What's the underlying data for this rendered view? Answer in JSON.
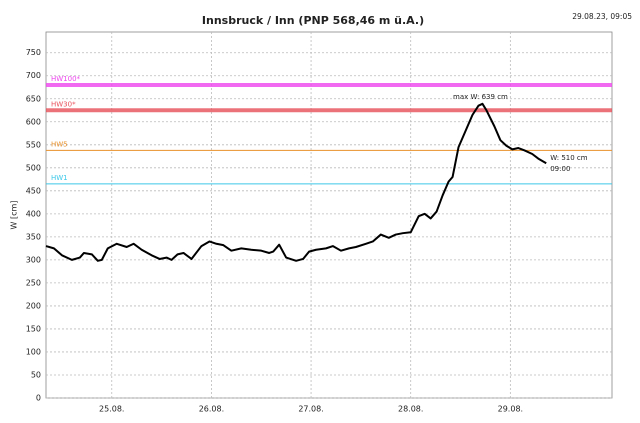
{
  "chart_data": {
    "type": "line",
    "title": "Innsbruck / Inn (PNP 568,46 m ü.A.)",
    "timestamp": "29.08.23, 09:05",
    "ylabel": "W [cm]",
    "xlim": [
      24.34,
      30.02
    ],
    "xticks": [
      {
        "value": 25,
        "label": "25.08."
      },
      {
        "value": 26,
        "label": "26.08."
      },
      {
        "value": 27,
        "label": "27.08."
      },
      {
        "value": 28,
        "label": "28.08."
      },
      {
        "value": 29,
        "label": "29.08."
      }
    ],
    "ylim": [
      0,
      795
    ],
    "yticks": [
      0,
      50,
      100,
      150,
      200,
      250,
      300,
      350,
      400,
      450,
      500,
      550,
      600,
      650,
      700,
      750
    ],
    "grid": true,
    "thresholds": [
      {
        "name": "HW100*",
        "value": 680,
        "color": "#ee44ee"
      },
      {
        "name": "HW30*",
        "value": 625,
        "color": "#e8505a"
      },
      {
        "name": "HW5",
        "value": 538,
        "color": "#e8902a"
      },
      {
        "name": "HW1",
        "value": 465,
        "color": "#3cc8e8"
      }
    ],
    "series": [
      {
        "color": "#000000",
        "x": [
          24.34,
          24.42,
          24.5,
          24.6,
          24.68,
          24.72,
          24.8,
          24.86,
          24.9,
          24.96,
          25.05,
          25.15,
          25.22,
          25.3,
          25.4,
          25.48,
          25.55,
          25.6,
          25.66,
          25.72,
          25.8,
          25.9,
          25.98,
          26.05,
          26.12,
          26.2,
          26.3,
          26.4,
          26.5,
          26.58,
          26.62,
          26.68,
          26.75,
          26.85,
          26.92,
          26.98,
          27.05,
          27.15,
          27.22,
          27.3,
          27.38,
          27.45,
          27.55,
          27.62,
          27.7,
          27.78,
          27.85,
          27.92,
          28.0,
          28.08,
          28.14,
          28.2,
          28.26,
          28.32,
          28.38,
          28.42,
          28.48,
          28.55,
          28.62,
          28.68,
          28.72,
          28.76,
          28.84,
          28.9,
          28.96,
          29.02,
          29.08,
          29.14,
          29.22,
          29.28,
          29.36
        ],
        "values": [
          330,
          325,
          310,
          300,
          305,
          315,
          312,
          298,
          300,
          325,
          335,
          328,
          335,
          322,
          310,
          302,
          305,
          300,
          312,
          315,
          302,
          330,
          340,
          335,
          332,
          320,
          325,
          322,
          320,
          315,
          318,
          333,
          305,
          298,
          302,
          318,
          322,
          325,
          330,
          320,
          325,
          328,
          335,
          340,
          355,
          348,
          355,
          358,
          360,
          395,
          400,
          390,
          405,
          440,
          470,
          480,
          545,
          580,
          615,
          635,
          639,
          625,
          590,
          560,
          548,
          540,
          543,
          538,
          530,
          520,
          510
        ]
      }
    ],
    "annotations": [
      "max W: 639 cm",
      "W: 510 cm",
      "09:00"
    ]
  }
}
